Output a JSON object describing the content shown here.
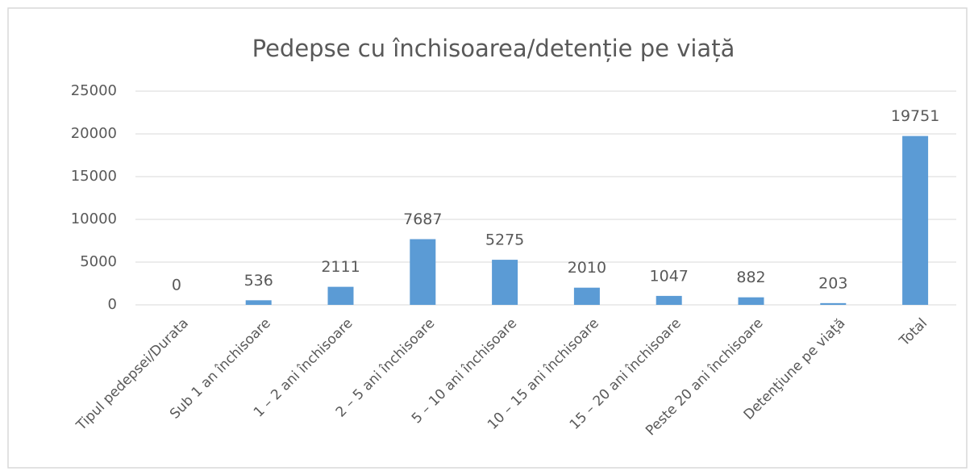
{
  "chart_data": {
    "type": "bar",
    "title": "Pedepse cu închisoarea/detenție pe viață",
    "categories": [
      "Tipul pedepsei/Durata",
      "Sub 1 an închisoare",
      "1 – 2 ani închisoare",
      "2 – 5 ani închisoare",
      "5 – 10 ani închisoare",
      "10 – 15 ani închisoare",
      "15 – 20 ani închisoare",
      "Peste 20 ani închisoare",
      "Detenţiune pe viaţă",
      "Total"
    ],
    "values": [
      0,
      536,
      2111,
      7687,
      5275,
      2010,
      1047,
      882,
      203,
      19751
    ],
    "color": "#5b9bd5",
    "ylim": [
      0,
      25000
    ],
    "yticks": [
      0,
      5000,
      10000,
      15000,
      20000,
      25000
    ],
    "grid": true
  }
}
